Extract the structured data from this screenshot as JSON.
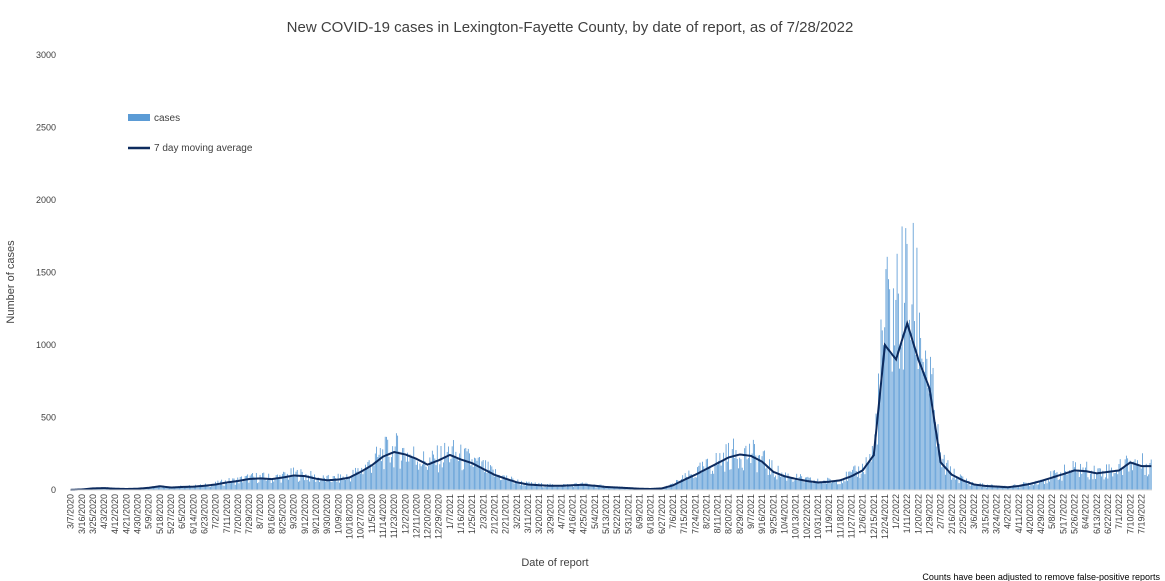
{
  "chart_data": {
    "type": "bar",
    "title": "New COVID-19 cases in Lexington-Fayette County, by date of report, as of 7/28/2022",
    "xlabel": "Date of report",
    "ylabel": "Number of cases",
    "ylim": [
      0,
      3000
    ],
    "yticks": [
      0,
      500,
      1000,
      1500,
      2000,
      2500,
      3000
    ],
    "x_tick_labels": [
      "3/7/2020",
      "3/16/2020",
      "3/25/2020",
      "4/3/2020",
      "4/12/2020",
      "4/21/2020",
      "4/30/2020",
      "5/9/2020",
      "5/18/2020",
      "5/27/2020",
      "6/5/2020",
      "6/14/2020",
      "6/23/2020",
      "7/2/2020",
      "7/11/2020",
      "7/20/2020",
      "7/29/2020",
      "8/7/2020",
      "8/16/2020",
      "8/25/2020",
      "9/3/2020",
      "9/12/2020",
      "9/21/2020",
      "9/30/2020",
      "10/9/2020",
      "10/18/2020",
      "10/27/2020",
      "11/5/2020",
      "11/14/2020",
      "11/23/2020",
      "12/2/2020",
      "12/11/2020",
      "12/20/2020",
      "12/29/2020",
      "1/7/2021",
      "1/16/2021",
      "1/25/2021",
      "2/3/2021",
      "2/12/2021",
      "2/21/2021",
      "3/2/2021",
      "3/11/2021",
      "3/20/2021",
      "3/29/2021",
      "4/7/2021",
      "4/16/2021",
      "4/25/2021",
      "5/4/2021",
      "5/13/2021",
      "5/22/2021",
      "5/31/2021",
      "6/9/2021",
      "6/18/2021",
      "6/27/2021",
      "7/6/2021",
      "7/15/2021",
      "7/24/2021",
      "8/2/2021",
      "8/11/2021",
      "8/20/2021",
      "8/29/2021",
      "9/7/2021",
      "9/16/2021",
      "9/25/2021",
      "10/4/2021",
      "10/13/2021",
      "10/22/2021",
      "10/31/2021",
      "11/9/2021",
      "11/18/2021",
      "11/27/2021",
      "12/6/2021",
      "12/15/2021",
      "12/24/2021",
      "1/2/2022",
      "1/11/2022",
      "1/20/2022",
      "1/29/2022",
      "2/7/2022",
      "2/16/2022",
      "2/25/2022",
      "3/6/2022",
      "3/15/2022",
      "3/24/2022",
      "4/2/2022",
      "4/11/2022",
      "4/20/2022",
      "4/29/2022",
      "5/8/2022",
      "5/17/2022",
      "5/26/2022",
      "6/4/2022",
      "6/13/2022",
      "6/22/2022",
      "7/1/2022",
      "7/10/2022",
      "7/19/2022"
    ],
    "x_tick_interval_days": 9,
    "series": [
      {
        "name": "cases",
        "kind": "bar",
        "color": "#5b9bd5",
        "note": "Daily new cases per 9-day tick interval, approximate values read from chart (sample points, linearly interpolated)",
        "values": [
          2,
          5,
          12,
          14,
          10,
          8,
          10,
          16,
          28,
          18,
          22,
          24,
          30,
          40,
          55,
          65,
          80,
          85,
          78,
          90,
          105,
          100,
          80,
          70,
          75,
          90,
          130,
          180,
          240,
          270,
          250,
          220,
          180,
          210,
          250,
          215,
          190,
          150,
          110,
          80,
          55,
          40,
          35,
          30,
          30,
          35,
          38,
          30,
          22,
          18,
          14,
          10,
          8,
          12,
          35,
          75,
          110,
          150,
          190,
          230,
          250,
          240,
          200,
          130,
          100,
          80,
          65,
          55,
          60,
          70,
          100,
          140,
          250,
          1100,
          1200,
          1300,
          1200,
          750,
          200,
          110,
          70,
          40,
          30,
          25,
          20,
          30,
          45,
          65,
          90,
          115,
          140,
          135,
          120,
          130,
          140,
          200,
          170
        ]
      },
      {
        "name": "7 day moving average",
        "kind": "line",
        "color": "#0d2b5e",
        "values": [
          1,
          4,
          11,
          13,
          9,
          7,
          9,
          15,
          26,
          17,
          21,
          23,
          29,
          38,
          52,
          62,
          76,
          80,
          75,
          86,
          100,
          96,
          78,
          67,
          72,
          86,
          125,
          170,
          230,
          262,
          245,
          215,
          175,
          205,
          242,
          210,
          185,
          145,
          105,
          78,
          53,
          38,
          33,
          29,
          29,
          33,
          36,
          29,
          21,
          17,
          13,
          9,
          7,
          11,
          32,
          70,
          105,
          145,
          185,
          225,
          245,
          235,
          195,
          125,
          95,
          77,
          62,
          52,
          57,
          67,
          95,
          135,
          240,
          1000,
          900,
          1150,
          900,
          700,
          190,
          105,
          66,
          38,
          28,
          24,
          19,
          28,
          42,
          62,
          86,
          110,
          135,
          130,
          115,
          125,
          135,
          190,
          165
        ]
      }
    ],
    "legend": {
      "placement": "top-left",
      "items": [
        "cases",
        "7 day moving average"
      ]
    },
    "footnote": "Counts have been adjusted to remove false-positive reports",
    "grid": false
  }
}
